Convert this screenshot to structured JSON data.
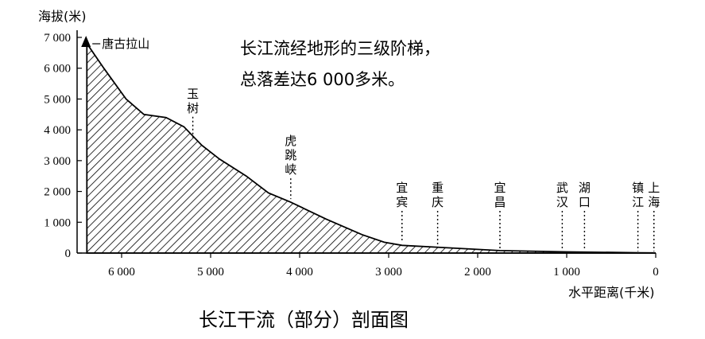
{
  "chart_data": {
    "type": "area",
    "ylabel": "海拔(米)",
    "xlabel": "水平距离(千米)",
    "y_ticks": [
      "0",
      "1 000",
      "2 000",
      "3 000",
      "4 000",
      "5 000",
      "6 000",
      "7 000"
    ],
    "x_ticks": [
      "6 000",
      "5 000",
      "4 000",
      "3 000",
      "2 000",
      "1 000",
      "0"
    ],
    "x_tick_values": [
      6000,
      5000,
      4000,
      3000,
      2000,
      1000,
      0
    ],
    "y_tick_values": [
      0,
      1000,
      2000,
      3000,
      4000,
      5000,
      6000,
      7000
    ],
    "xlim": [
      6500,
      0
    ],
    "ylim": [
      0,
      7000
    ],
    "profile": [
      {
        "x": 6390,
        "y": 6800
      },
      {
        "x": 6200,
        "y": 6000
      },
      {
        "x": 5950,
        "y": 5000
      },
      {
        "x": 5750,
        "y": 4500
      },
      {
        "x": 5500,
        "y": 4400
      },
      {
        "x": 5300,
        "y": 4100
      },
      {
        "x": 5100,
        "y": 3500
      },
      {
        "x": 4900,
        "y": 3050
      },
      {
        "x": 4600,
        "y": 2500
      },
      {
        "x": 4350,
        "y": 1950
      },
      {
        "x": 4100,
        "y": 1650
      },
      {
        "x": 3700,
        "y": 1100
      },
      {
        "x": 3300,
        "y": 600
      },
      {
        "x": 3050,
        "y": 350
      },
      {
        "x": 2850,
        "y": 250
      },
      {
        "x": 2400,
        "y": 180
      },
      {
        "x": 1750,
        "y": 80
      },
      {
        "x": 1000,
        "y": 40
      },
      {
        "x": 180,
        "y": 10
      },
      {
        "x": 20,
        "y": 5
      }
    ],
    "places": [
      {
        "name": "唐古拉山",
        "x": 6400,
        "y": 7000
      },
      {
        "name": "玉树",
        "x": 5200,
        "y": 3700
      },
      {
        "name": "虎跳峡",
        "x": 4100,
        "y": 1700
      },
      {
        "name": "宜宾",
        "x": 2850,
        "y": 300
      },
      {
        "name": "重庆",
        "x": 2450,
        "y": 200
      },
      {
        "name": "宜昌",
        "x": 1750,
        "y": 100
      },
      {
        "name": "武汉",
        "x": 1050,
        "y": 50
      },
      {
        "name": "湖口",
        "x": 800,
        "y": 40
      },
      {
        "name": "镇江",
        "x": 200,
        "y": 10
      },
      {
        "name": "上海",
        "x": 20,
        "y": 5
      }
    ]
  },
  "headline": {
    "line1": "长江流经地形的三级阶梯，",
    "line2": "总落差达6 000多米。"
  },
  "caption": "长江干流（部分）剖面图"
}
